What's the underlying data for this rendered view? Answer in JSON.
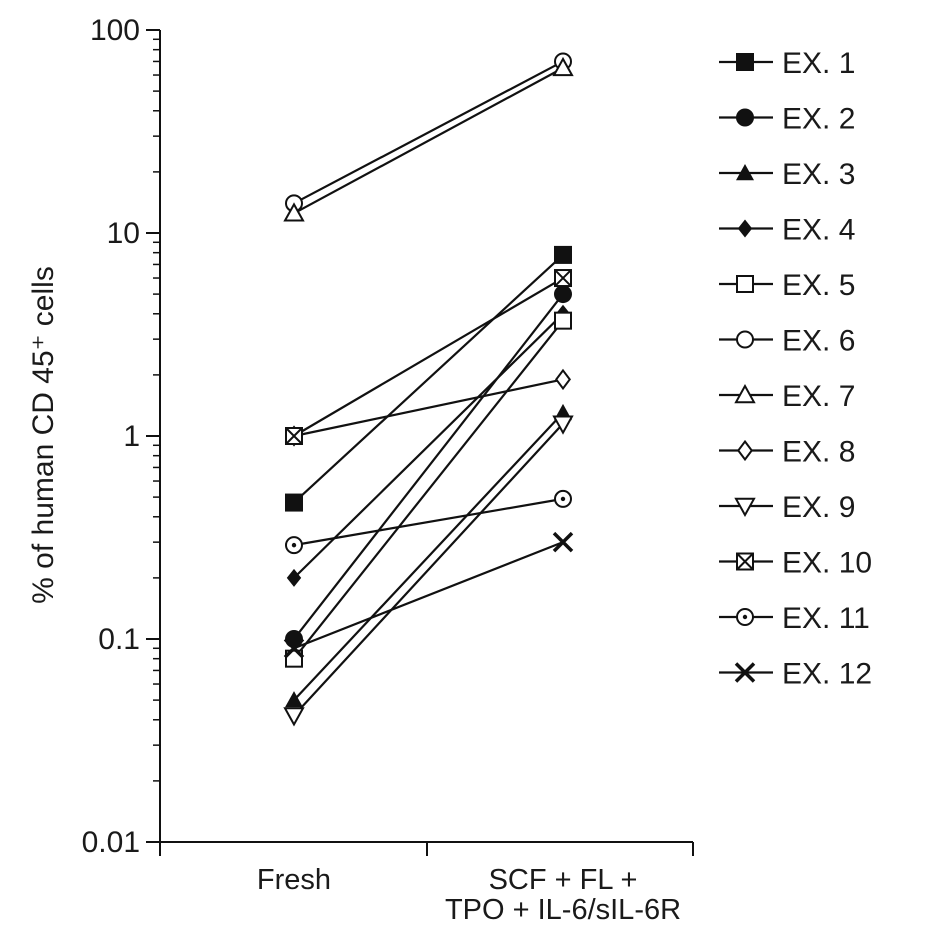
{
  "chart_data": {
    "type": "line",
    "yscale": "log",
    "ylim": [
      0.01,
      100
    ],
    "ylabel": "% of human CD 45⁺ cells",
    "categories": [
      [
        "Fresh"
      ],
      [
        "SCF + FL +",
        "TPO + IL-6/sIL-6R"
      ]
    ],
    "yticks": [
      {
        "value": 100,
        "label": "100"
      },
      {
        "value": 10,
        "label": "10"
      },
      {
        "value": 1,
        "label": "1"
      },
      {
        "value": 0.1,
        "label": "0.1"
      },
      {
        "value": 0.01,
        "label": "0.01"
      }
    ],
    "grid": false,
    "legend_position": "right",
    "series": [
      {
        "name": "EX. 1",
        "marker": "square-filled",
        "values": [
          0.47,
          7.8
        ]
      },
      {
        "name": "EX. 2",
        "marker": "circle-filled",
        "values": [
          0.1,
          5.0
        ]
      },
      {
        "name": "EX. 3",
        "marker": "triangle-filled",
        "values": [
          0.05,
          1.3
        ]
      },
      {
        "name": "EX. 4",
        "marker": "diamond-filled",
        "values": [
          0.2,
          4.0
        ]
      },
      {
        "name": "EX. 5",
        "marker": "square-open",
        "values": [
          0.08,
          3.7
        ]
      },
      {
        "name": "EX. 6",
        "marker": "circle-open",
        "values": [
          14,
          70
        ]
      },
      {
        "name": "EX. 7",
        "marker": "triangle-open",
        "values": [
          12.5,
          65
        ]
      },
      {
        "name": "EX. 8",
        "marker": "diamond-open",
        "values": [
          1.0,
          1.9
        ]
      },
      {
        "name": "EX. 9",
        "marker": "triangle-down-open",
        "values": [
          0.042,
          1.15
        ]
      },
      {
        "name": "EX. 10",
        "marker": "square-x",
        "values": [
          1.0,
          6.0
        ]
      },
      {
        "name": "EX. 11",
        "marker": "circle-dot",
        "values": [
          0.29,
          0.49
        ]
      },
      {
        "name": "EX. 12",
        "marker": "x",
        "values": [
          0.09,
          0.3
        ]
      }
    ]
  }
}
